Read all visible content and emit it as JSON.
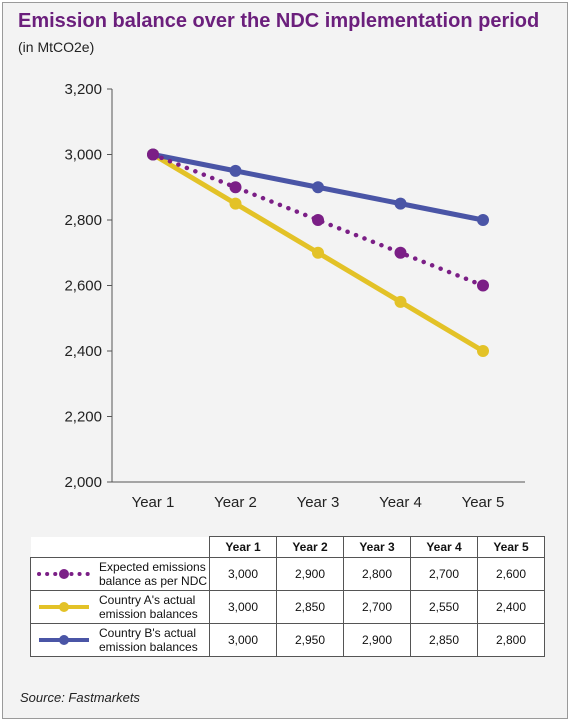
{
  "header": {
    "title": "Emission balance over the NDC implementation period",
    "subtitle": "(in MtCO2e)"
  },
  "source": "Source: Fastmarkets",
  "chart_data": {
    "type": "line",
    "categories": [
      "Year 1",
      "Year 2",
      "Year 3",
      "Year 4",
      "Year 5"
    ],
    "ylim": [
      2000,
      3200
    ],
    "yticks": [
      2000,
      2200,
      2400,
      2600,
      2800,
      3000,
      3200
    ],
    "ytick_labels": [
      "2,000",
      "2,200",
      "2,400",
      "2,600",
      "2,800",
      "3,000",
      "3,200"
    ],
    "grid": false,
    "series": [
      {
        "key": "expected",
        "name": "Expected emissions balance as per NDC",
        "name_lines": [
          "Expected emissions",
          "balance as per NDC"
        ],
        "values": [
          3000,
          2900,
          2800,
          2700,
          2600
        ],
        "labels": [
          "3,000",
          "2,900",
          "2,800",
          "2,700",
          "2,600"
        ],
        "color": "#7b1f86",
        "style": "dotted"
      },
      {
        "key": "country_a",
        "name": "Country A's actual emission balances",
        "name_lines": [
          "Country A's actual",
          "emission balances"
        ],
        "values": [
          3000,
          2850,
          2700,
          2550,
          2400
        ],
        "labels": [
          "3,000",
          "2,850",
          "2,700",
          "2,550",
          "2,400"
        ],
        "color": "#e3c227",
        "style": "solid"
      },
      {
        "key": "country_b",
        "name": "Country B's actual emission balances",
        "name_lines": [
          "Country B's actual",
          "emission balances"
        ],
        "values": [
          3000,
          2950,
          2900,
          2850,
          2800
        ],
        "labels": [
          "3,000",
          "2,950",
          "2,900",
          "2,850",
          "2,800"
        ],
        "color": "#4a55a6",
        "style": "solid"
      }
    ]
  }
}
